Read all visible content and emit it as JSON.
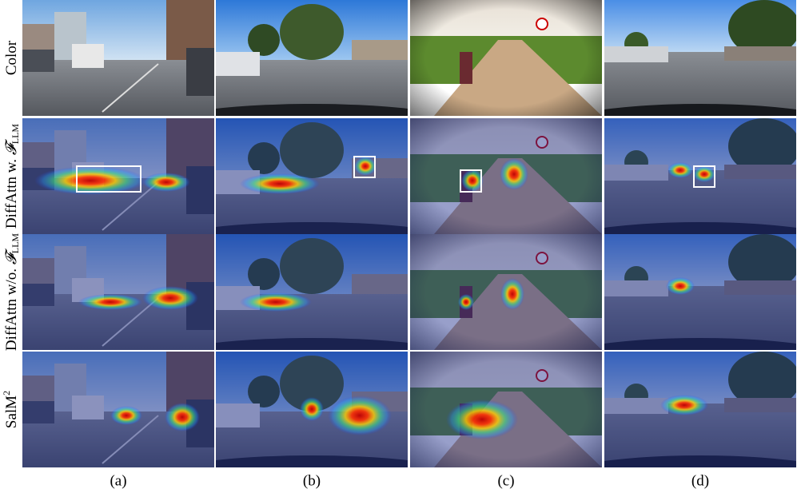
{
  "figure": {
    "row_labels": [
      {
        "text": "Color"
      },
      {
        "text": "DiffAttn w. ",
        "symbol": "𝓕",
        "subscript": "LLM"
      },
      {
        "text": "DiffAttn w/o. ",
        "symbol": "𝓕",
        "subscript": "LLM"
      },
      {
        "text": "SalM",
        "superscript": "2"
      }
    ],
    "column_labels": [
      "(a)",
      "(b)",
      "(c)",
      "(d)"
    ]
  }
}
